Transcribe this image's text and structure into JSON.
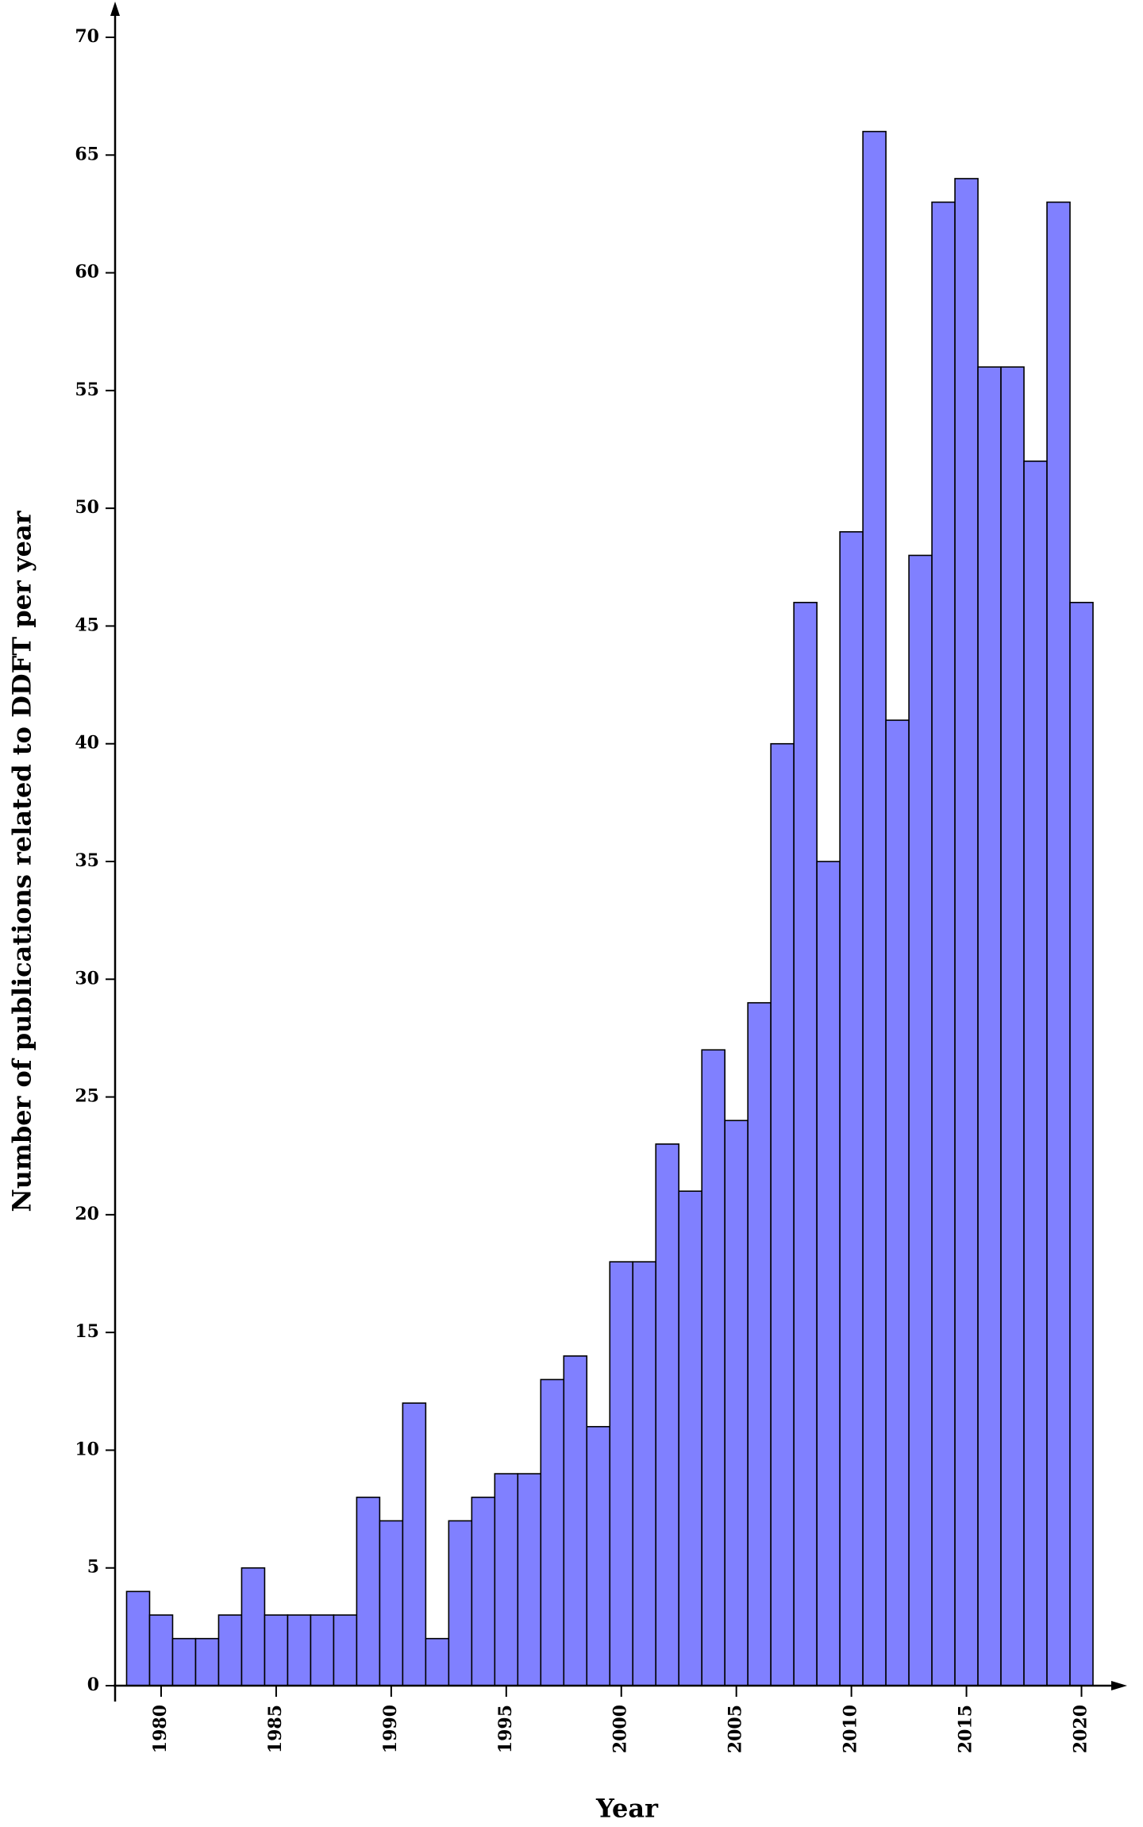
{
  "chart_data": {
    "type": "bar",
    "x_label": "Year",
    "y_label": "Number of publications related to DDFT per year",
    "x": [
      1979,
      1980,
      1981,
      1982,
      1983,
      1984,
      1985,
      1986,
      1987,
      1988,
      1989,
      1990,
      1991,
      1992,
      1993,
      1994,
      1995,
      1996,
      1997,
      1998,
      1999,
      2000,
      2001,
      2002,
      2003,
      2004,
      2005,
      2006,
      2007,
      2008,
      2009,
      2010,
      2011,
      2012,
      2013,
      2014,
      2015,
      2016,
      2017,
      2018,
      2019,
      2020
    ],
    "values": [
      4,
      3,
      2,
      2,
      3,
      5,
      3,
      3,
      3,
      3,
      8,
      7,
      12,
      2,
      7,
      8,
      9,
      9,
      13,
      14,
      11,
      18,
      18,
      23,
      21,
      27,
      24,
      29,
      40,
      46,
      35,
      49,
      66,
      41,
      48,
      63,
      64,
      56,
      56,
      52,
      63,
      46
    ],
    "color": "#8080ff",
    "xlim": [
      1978,
      2021.5
    ],
    "xticks": [
      1980,
      1985,
      1990,
      1995,
      2000,
      2005,
      2010,
      2015,
      2020
    ],
    "ylim": [
      0,
      70
    ],
    "yticks": [
      0,
      5,
      10,
      15,
      20,
      25,
      30,
      35,
      40,
      45,
      50,
      55,
      60,
      65,
      70
    ],
    "grid": false
  }
}
